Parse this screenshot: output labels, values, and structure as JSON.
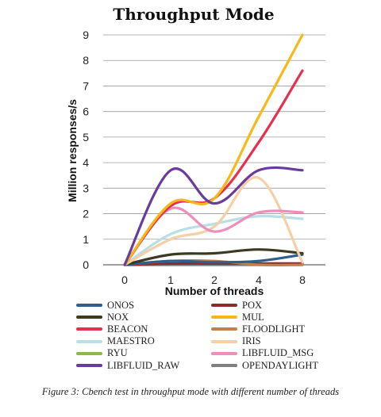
{
  "chart_data": {
    "type": "line",
    "title": "Throughput Mode",
    "xlabel": "Number of threads",
    "ylabel": "Million responses/s",
    "categories": [
      "0",
      "1",
      "2",
      "4",
      "8"
    ],
    "ylim": [
      0,
      9
    ],
    "yticks": [
      0,
      1,
      2,
      3,
      4,
      5,
      6,
      7,
      8,
      9
    ],
    "grid": true,
    "legend_position": "bottom",
    "series": [
      {
        "name": "ONOS",
        "color": "#2e5f8e",
        "values": [
          0,
          0.15,
          0.1,
          0.15,
          0.4
        ]
      },
      {
        "name": "POX",
        "color": "#8b2b2b",
        "values": [
          0,
          0.05,
          0.05,
          0.05,
          0.05
        ]
      },
      {
        "name": "NOX",
        "color": "#3d3a22",
        "values": [
          0,
          0.4,
          0.45,
          0.6,
          0.45
        ]
      },
      {
        "name": "MUL",
        "color": "#f6b919",
        "values": [
          0,
          2.4,
          2.6,
          5.8,
          9.0
        ]
      },
      {
        "name": "BEACON",
        "color": "#e5314d",
        "values": [
          0,
          2.3,
          2.6,
          4.8,
          7.6
        ]
      },
      {
        "name": "FLOODLIGHT",
        "color": "#c08050",
        "values": [
          0,
          0.15,
          0.15,
          0.0,
          0.0
        ]
      },
      {
        "name": "MAESTRO",
        "color": "#b9dfe6",
        "values": [
          0,
          1.2,
          1.6,
          1.9,
          1.8
        ]
      },
      {
        "name": "IRIS",
        "color": "#f4cfa8",
        "values": [
          0,
          1.0,
          1.5,
          3.4,
          0.1
        ]
      },
      {
        "name": "RYU",
        "color": "#8fb64f",
        "values": [
          0,
          0.0,
          0.0,
          0.0,
          0.0
        ]
      },
      {
        "name": "LIBFLUID_MSG",
        "color": "#ee8ebb",
        "values": [
          0,
          2.2,
          1.3,
          2.05,
          2.05
        ]
      },
      {
        "name": "LIBFLUID_RAW",
        "color": "#6b3b9c",
        "values": [
          0,
          3.7,
          2.4,
          3.7,
          3.7
        ]
      },
      {
        "name": "OPENDAYLIGHT",
        "color": "#7f7f7f",
        "values": [
          0,
          0.0,
          0.0,
          0.0,
          0.0
        ]
      }
    ]
  },
  "caption": "Figure 3: Cbench test in throughput mode with different number of threads"
}
